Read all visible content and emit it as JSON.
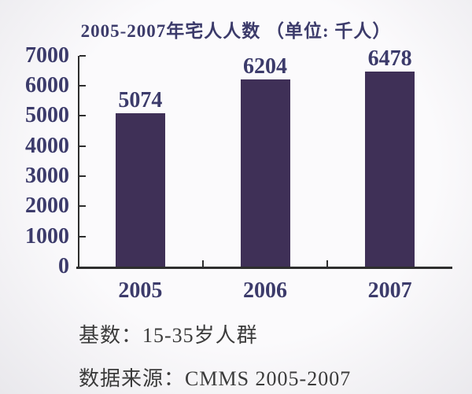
{
  "chart_data": {
    "type": "bar",
    "title": "2005-2007年宅人人数 （单位: 千人）",
    "categories": [
      "2005",
      "2006",
      "2007"
    ],
    "values": [
      5074,
      6204,
      6478
    ],
    "value_labels": [
      "5074",
      "6204",
      "6478"
    ],
    "unit": "千人",
    "xlabel": "",
    "ylabel": "",
    "ylim": [
      0,
      7000
    ],
    "yticks": [
      0,
      1000,
      2000,
      3000,
      4000,
      5000,
      6000,
      7000
    ],
    "ytick_labels": [
      "0",
      "1000",
      "2000",
      "3000",
      "4000",
      "5000",
      "6000",
      "7000"
    ],
    "grid": false,
    "legend": false,
    "bar_color": "#3f3057"
  },
  "footer": {
    "line1": "基数：15-35岁人群",
    "line2": "数据来源：CMMS 2005-2007"
  },
  "colors": {
    "bar": "#3f3057",
    "text": "#3c3b6b",
    "axis": "#2e2e2e",
    "footer": "#3b3b3b",
    "background": "#fbfafc",
    "background_edge": "#e9e8ec"
  }
}
